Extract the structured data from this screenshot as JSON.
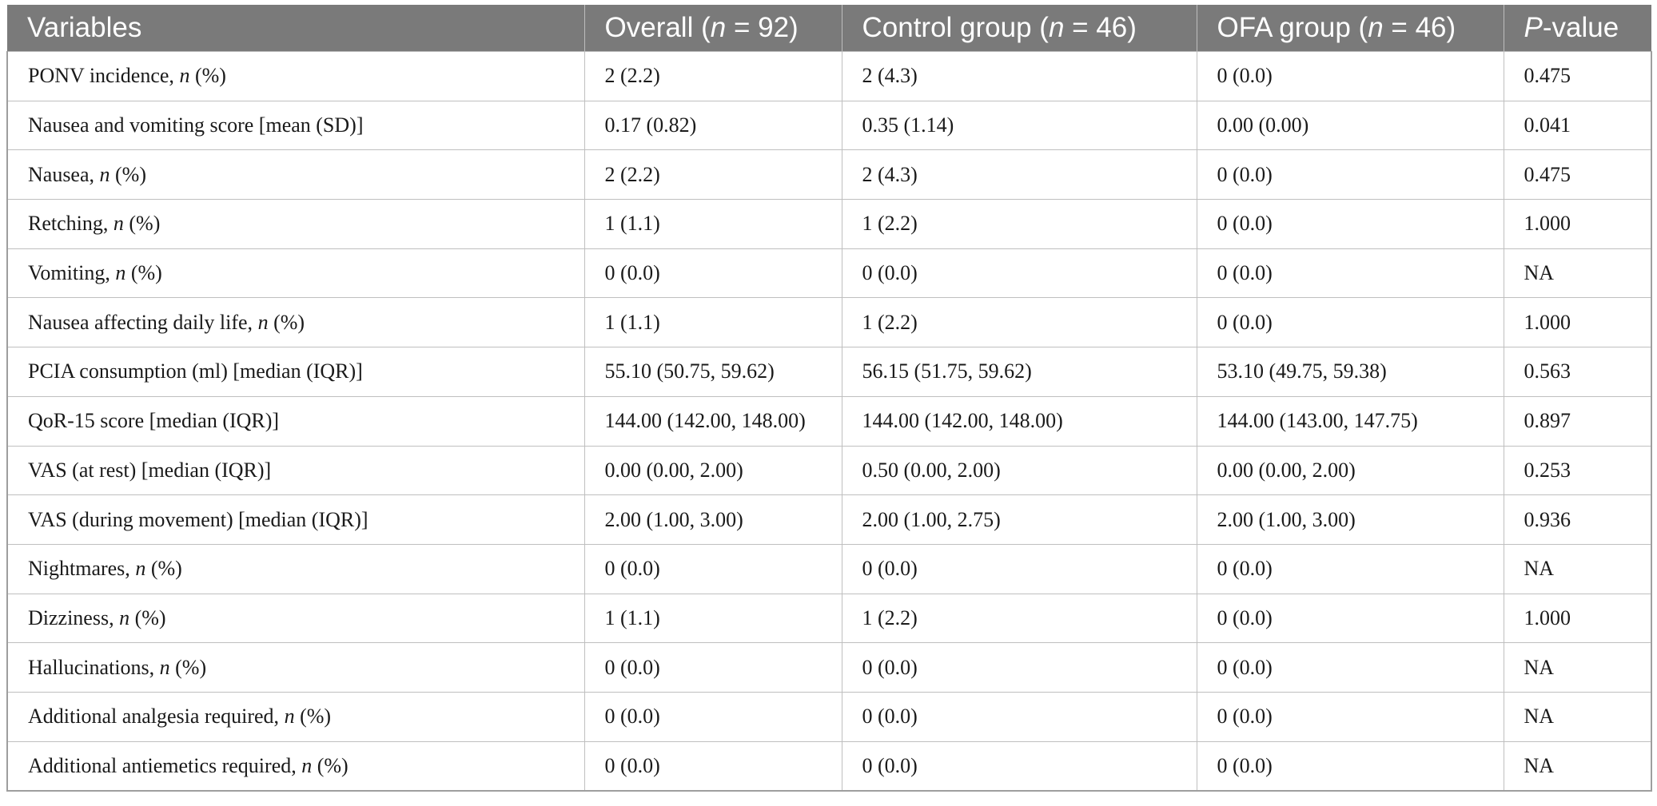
{
  "headers": {
    "variables": "Variables",
    "overall_pre": "Overall (",
    "overall_n": "n",
    "overall_post": " = 92)",
    "control_pre": "Control group (",
    "control_n": "n",
    "control_post": " = 46)",
    "ofa_pre": "OFA group (",
    "ofa_n": "n",
    "ofa_post": " = 46)",
    "p_italic": "P",
    "p_post": "-value"
  },
  "rows": [
    {
      "label": "PONV incidence, ",
      "label_italic": "n",
      "label_suffix": " (%)",
      "overall": "2 (2.2)",
      "control": "2 (4.3)",
      "ofa": "0 (0.0)",
      "p": "0.475"
    },
    {
      "label": "Nausea and vomiting score [mean (SD)]",
      "label_italic": "",
      "label_suffix": "",
      "overall": "0.17 (0.82)",
      "control": "0.35 (1.14)",
      "ofa": "0.00 (0.00)",
      "p": "0.041"
    },
    {
      "label": "Nausea, ",
      "label_italic": "n",
      "label_suffix": " (%)",
      "overall": "2 (2.2)",
      "control": "2 (4.3)",
      "ofa": "0 (0.0)",
      "p": "0.475"
    },
    {
      "label": "Retching, ",
      "label_italic": "n",
      "label_suffix": " (%)",
      "overall": "1 (1.1)",
      "control": "1 (2.2)",
      "ofa": "0 (0.0)",
      "p": "1.000"
    },
    {
      "label": "Vomiting, ",
      "label_italic": "n",
      "label_suffix": " (%)",
      "overall": "0 (0.0)",
      "control": "0 (0.0)",
      "ofa": "0 (0.0)",
      "p": "NA"
    },
    {
      "label": "Nausea affecting daily life, ",
      "label_italic": "n",
      "label_suffix": " (%)",
      "overall": "1 (1.1)",
      "control": "1 (2.2)",
      "ofa": "0 (0.0)",
      "p": "1.000"
    },
    {
      "label": "PCIA consumption (ml) [median (IQR)]",
      "label_italic": "",
      "label_suffix": "",
      "overall": "55.10 (50.75, 59.62)",
      "control": "56.15 (51.75, 59.62)",
      "ofa": "53.10 (49.75, 59.38)",
      "p": "0.563"
    },
    {
      "label": "QoR-15 score [median (IQR)]",
      "label_italic": "",
      "label_suffix": "",
      "overall": "144.00 (142.00, 148.00)",
      "control": "144.00 (142.00, 148.00)",
      "ofa": "144.00 (143.00, 147.75)",
      "p": "0.897"
    },
    {
      "label": "VAS (at rest) [median (IQR)]",
      "label_italic": "",
      "label_suffix": "",
      "overall": "0.00 (0.00, 2.00)",
      "control": "0.50 (0.00, 2.00)",
      "ofa": "0.00 (0.00, 2.00)",
      "p": "0.253"
    },
    {
      "label": "VAS (during movement) [median (IQR)]",
      "label_italic": "",
      "label_suffix": "",
      "overall": "2.00 (1.00, 3.00)",
      "control": "2.00 (1.00, 2.75)",
      "ofa": "2.00 (1.00, 3.00)",
      "p": "0.936"
    },
    {
      "label": "Nightmares, ",
      "label_italic": "n",
      "label_suffix": " (%)",
      "overall": "0 (0.0)",
      "control": "0 (0.0)",
      "ofa": "0 (0.0)",
      "p": "NA"
    },
    {
      "label": "Dizziness, ",
      "label_italic": "n",
      "label_suffix": " (%)",
      "overall": "1 (1.1)",
      "control": "1 (2.2)",
      "ofa": "0 (0.0)",
      "p": "1.000"
    },
    {
      "label": "Hallucinations, ",
      "label_italic": "n",
      "label_suffix": " (%)",
      "overall": "0 (0.0)",
      "control": "0 (0.0)",
      "ofa": "0 (0.0)",
      "p": "NA"
    },
    {
      "label": "Additional analgesia required, ",
      "label_italic": "n",
      "label_suffix": " (%)",
      "overall": "0 (0.0)",
      "control": "0 (0.0)",
      "ofa": "0 (0.0)",
      "p": "NA"
    },
    {
      "label": "Additional antiemetics required, ",
      "label_italic": "n",
      "label_suffix": " (%)",
      "overall": "0 (0.0)",
      "control": "0 (0.0)",
      "ofa": "0 (0.0)",
      "p": "NA"
    }
  ]
}
